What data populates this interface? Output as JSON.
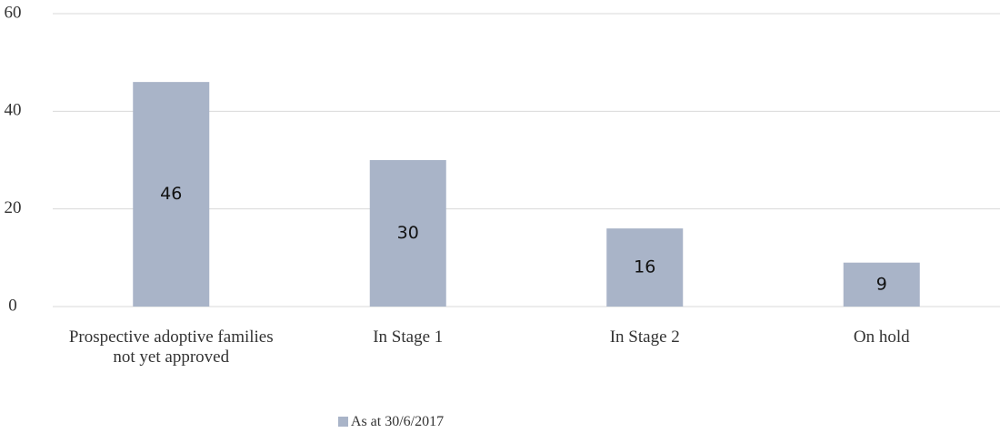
{
  "chart_data": {
    "type": "bar",
    "categories": [
      "Prospective adoptive families not yet approved",
      "In Stage 1",
      "In Stage 2",
      "On hold"
    ],
    "series": [
      {
        "name": "As at 30/6/2017",
        "color": "#a9b4c8",
        "values": [
          46,
          30,
          16,
          9
        ]
      }
    ],
    "ylim": [
      0,
      60
    ],
    "yticks": [
      0,
      20,
      40,
      60
    ],
    "grid": true,
    "legend": "bottom"
  }
}
